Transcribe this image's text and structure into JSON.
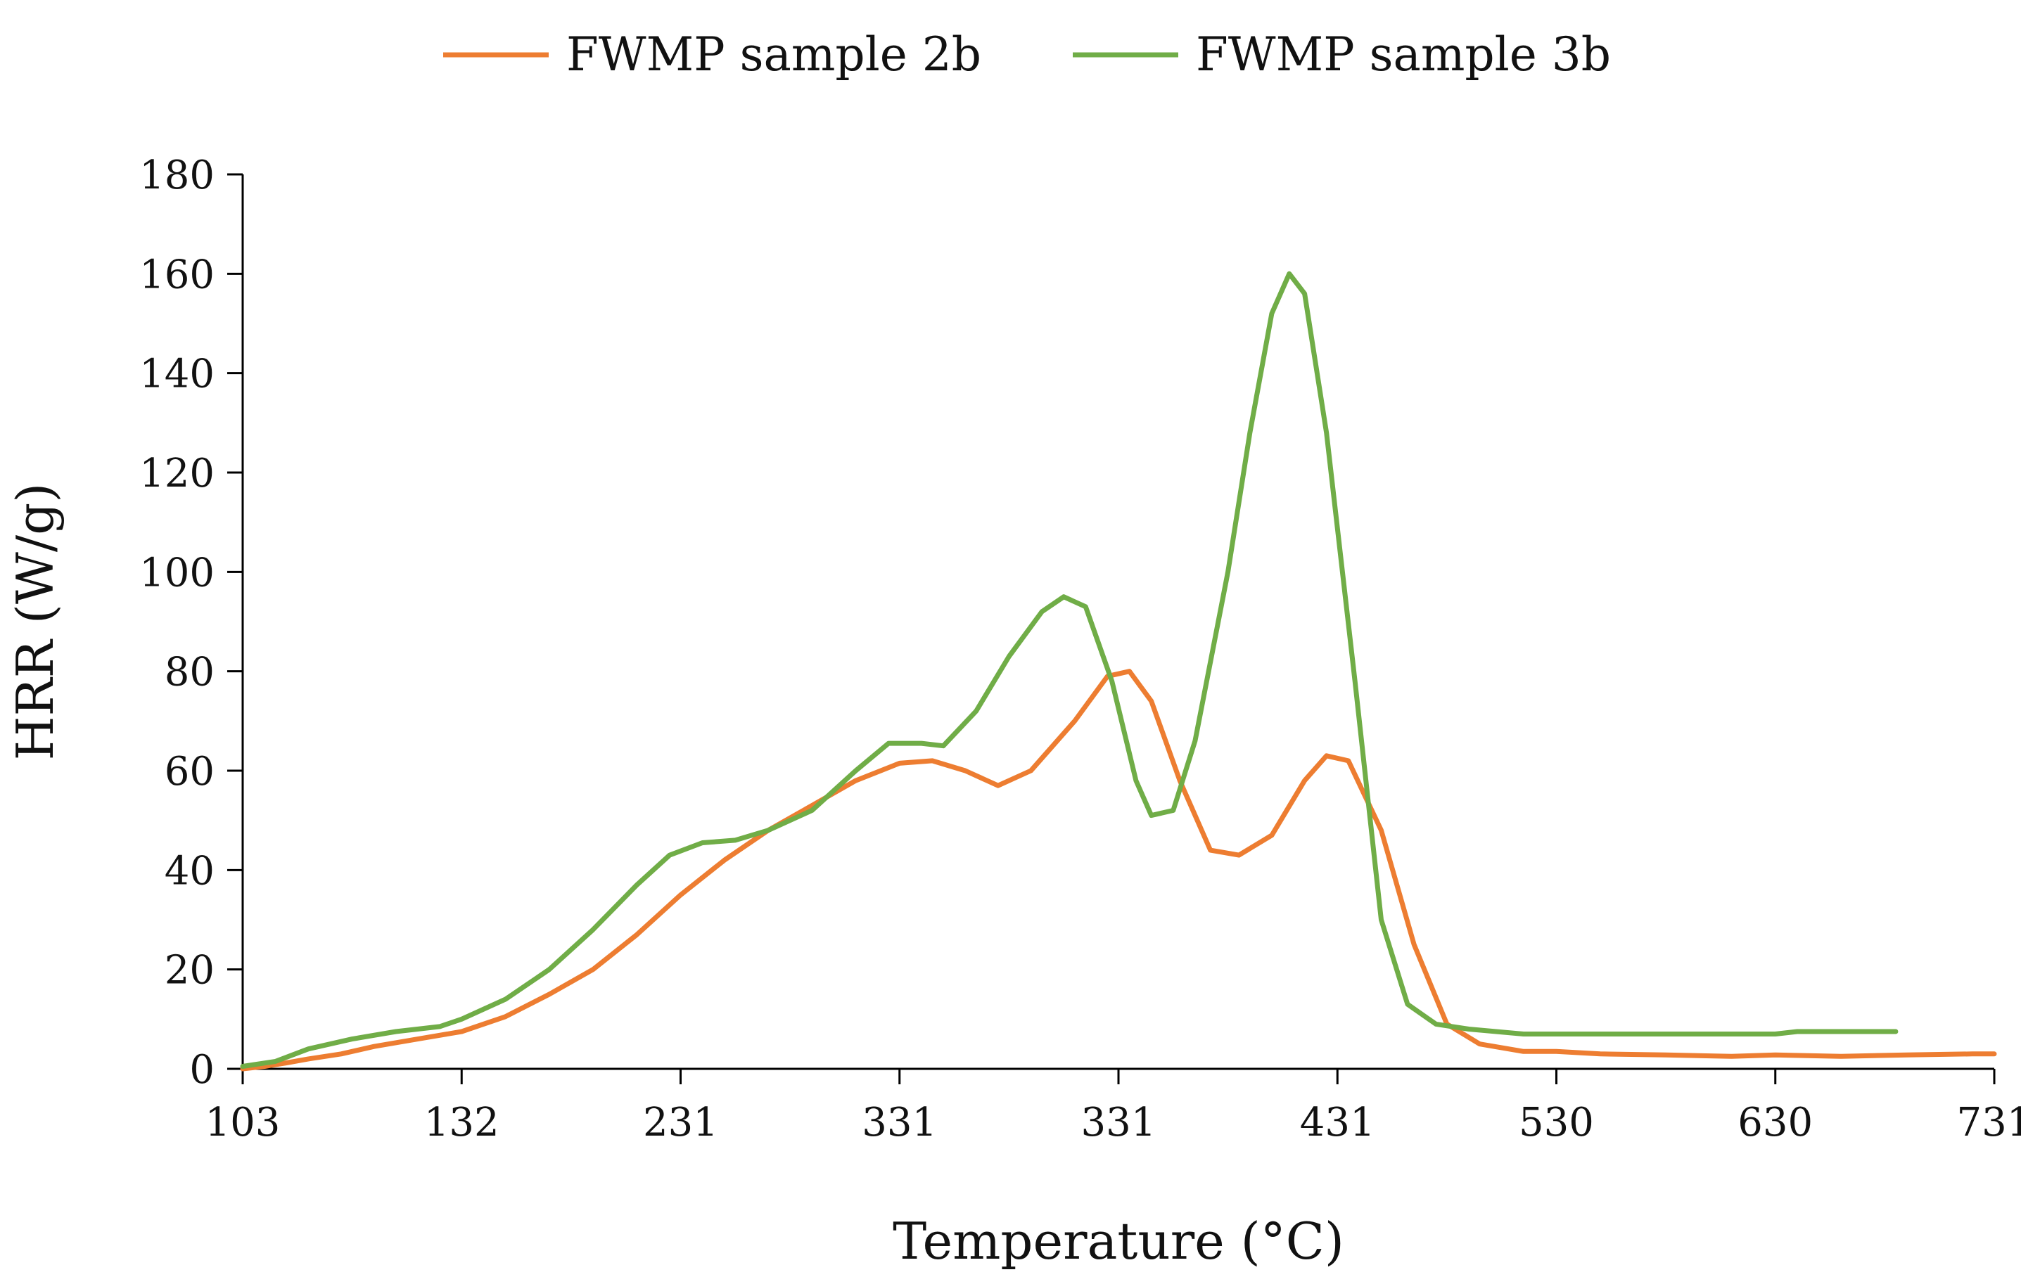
{
  "chart_data": {
    "type": "line",
    "title": "",
    "xlabel": "Temperature (°C)",
    "ylabel": "HRR (W/g)",
    "categories": [
      "103",
      "132",
      "231",
      "331",
      "331",
      "431",
      "530",
      "630",
      "731"
    ],
    "xlim_note": "x axis tick labels as printed (non-linear printed values, evenly spaced ticks)",
    "yticks": [
      "0",
      "20",
      "40",
      "60",
      "80",
      "100",
      "120",
      "140",
      "160",
      "180"
    ],
    "ylim": [
      0,
      180
    ],
    "legend": {
      "position": "top-center",
      "entries": [
        "FWMP sample 2b",
        "FWMP sample 3b"
      ]
    },
    "series": [
      {
        "name": "FWMP sample 2b",
        "color": "#ED7D31",
        "points": [
          [
            0.0,
            0
          ],
          [
            0.1,
            0.5
          ],
          [
            0.2,
            1.2
          ],
          [
            0.3,
            2
          ],
          [
            0.45,
            3
          ],
          [
            0.6,
            4.5
          ],
          [
            0.8,
            6
          ],
          [
            1.0,
            7.5
          ],
          [
            1.2,
            10.5
          ],
          [
            1.4,
            15
          ],
          [
            1.6,
            20
          ],
          [
            1.8,
            27
          ],
          [
            2.0,
            35
          ],
          [
            2.2,
            42
          ],
          [
            2.4,
            48
          ],
          [
            2.6,
            53
          ],
          [
            2.8,
            58
          ],
          [
            3.0,
            61.5
          ],
          [
            3.15,
            62
          ],
          [
            3.3,
            60
          ],
          [
            3.45,
            57
          ],
          [
            3.6,
            60
          ],
          [
            3.8,
            70
          ],
          [
            3.95,
            79
          ],
          [
            4.05,
            80
          ],
          [
            4.15,
            74
          ],
          [
            4.28,
            58
          ],
          [
            4.42,
            44
          ],
          [
            4.55,
            43
          ],
          [
            4.7,
            47
          ],
          [
            4.85,
            58
          ],
          [
            4.95,
            63
          ],
          [
            5.05,
            62
          ],
          [
            5.2,
            48
          ],
          [
            5.35,
            25
          ],
          [
            5.5,
            9
          ],
          [
            5.65,
            5
          ],
          [
            5.85,
            3.5
          ],
          [
            6.0,
            3.5
          ],
          [
            6.2,
            3
          ],
          [
            6.5,
            2.8
          ],
          [
            6.8,
            2.5
          ],
          [
            7.0,
            2.8
          ],
          [
            7.3,
            2.5
          ],
          [
            7.6,
            2.8
          ],
          [
            7.9,
            3
          ],
          [
            8.0,
            3
          ]
        ]
      },
      {
        "name": "FWMP sample 3b",
        "color": "#70AD47",
        "points": [
          [
            0.0,
            0.5
          ],
          [
            0.15,
            1.5
          ],
          [
            0.3,
            4
          ],
          [
            0.5,
            6
          ],
          [
            0.7,
            7.5
          ],
          [
            0.9,
            8.5
          ],
          [
            1.0,
            10
          ],
          [
            1.2,
            14
          ],
          [
            1.4,
            20
          ],
          [
            1.6,
            28
          ],
          [
            1.8,
            37
          ],
          [
            1.95,
            43
          ],
          [
            2.1,
            45.5
          ],
          [
            2.25,
            46
          ],
          [
            2.4,
            48
          ],
          [
            2.6,
            52
          ],
          [
            2.8,
            60
          ],
          [
            2.95,
            65.5
          ],
          [
            3.1,
            65.5
          ],
          [
            3.2,
            65
          ],
          [
            3.35,
            72
          ],
          [
            3.5,
            83
          ],
          [
            3.65,
            92
          ],
          [
            3.75,
            95
          ],
          [
            3.85,
            93
          ],
          [
            3.97,
            78
          ],
          [
            4.08,
            58
          ],
          [
            4.15,
            51
          ],
          [
            4.25,
            52
          ],
          [
            4.35,
            66
          ],
          [
            4.5,
            100
          ],
          [
            4.6,
            128
          ],
          [
            4.7,
            152
          ],
          [
            4.78,
            160
          ],
          [
            4.85,
            156
          ],
          [
            4.95,
            128
          ],
          [
            5.08,
            78
          ],
          [
            5.2,
            30
          ],
          [
            5.32,
            13
          ],
          [
            5.45,
            9
          ],
          [
            5.6,
            8
          ],
          [
            5.85,
            7
          ],
          [
            6.1,
            7
          ],
          [
            6.4,
            7
          ],
          [
            6.7,
            7
          ],
          [
            7.0,
            7
          ],
          [
            7.1,
            7.5
          ],
          [
            7.3,
            7.5
          ],
          [
            7.55,
            7.5
          ]
        ]
      }
    ]
  }
}
